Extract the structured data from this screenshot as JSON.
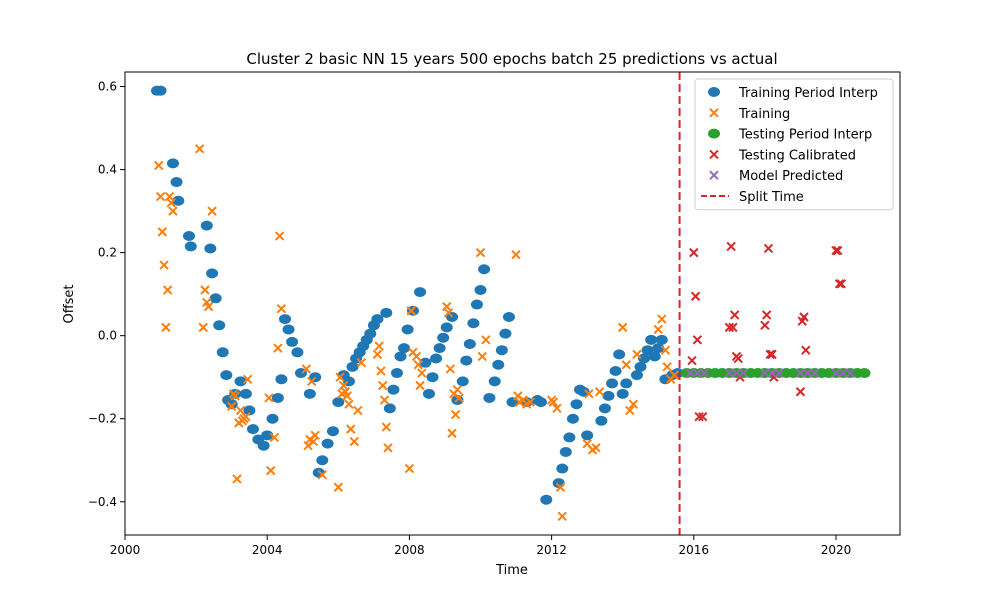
{
  "chart_data": {
    "type": "scatter",
    "title": "Cluster 2 basic NN 15 years 500 epochs batch 25 predictions vs actual",
    "xlabel": "Time",
    "ylabel": "Offset",
    "xlim": [
      2000.0,
      2021.8
    ],
    "ylim": [
      -0.48,
      0.635
    ],
    "x_ticks": [
      2000,
      2004,
      2008,
      2012,
      2016,
      2020
    ],
    "y_ticks": [
      -0.4,
      -0.2,
      0.0,
      0.2,
      0.4,
      0.6
    ],
    "y_tick_labels": [
      "−0.4",
      "−0.2",
      "0.0",
      "0.2",
      "0.4",
      "0.6"
    ],
    "grid": false,
    "legend_position": "top-right",
    "split_time": 2015.6,
    "series": [
      {
        "name": "Training Period Interp",
        "marker": "circle",
        "color": "#1f77b4",
        "x": [
          2000.9,
          2001.0,
          2001.35,
          2001.45,
          2001.5,
          2001.8,
          2001.85,
          2002.3,
          2002.4,
          2002.45,
          2002.55,
          2002.65,
          2002.75,
          2002.85,
          2002.9,
          2003.0,
          2003.1,
          2003.25,
          2003.4,
          2003.5,
          2003.6,
          2003.75,
          2003.9,
          2004.0,
          2004.15,
          2004.3,
          2004.4,
          2004.5,
          2004.6,
          2004.7,
          2004.85,
          2004.95,
          2005.2,
          2005.35,
          2005.45,
          2005.55,
          2005.7,
          2005.85,
          2006.0,
          2006.15,
          2006.3,
          2006.4,
          2006.5,
          2006.6,
          2006.7,
          2006.8,
          2006.9,
          2007.0,
          2007.1,
          2007.35,
          2007.45,
          2007.55,
          2007.65,
          2007.75,
          2007.85,
          2007.95,
          2008.1,
          2008.3,
          2008.45,
          2008.55,
          2008.65,
          2008.75,
          2008.85,
          2008.95,
          2009.05,
          2009.2,
          2009.35,
          2009.5,
          2009.6,
          2009.7,
          2009.8,
          2009.9,
          2010.0,
          2010.1,
          2010.25,
          2010.4,
          2010.5,
          2010.6,
          2010.7,
          2010.8,
          2010.9,
          2011.3,
          2011.6,
          2011.7,
          2011.85,
          2012.2,
          2012.3,
          2012.4,
          2012.5,
          2012.6,
          2012.7,
          2012.8,
          2012.9,
          2013.0,
          2013.4,
          2013.5,
          2013.6,
          2013.7,
          2013.8,
          2013.9,
          2014.0,
          2014.1,
          2014.4,
          2014.5,
          2014.6,
          2014.7,
          2014.8,
          2014.9,
          2015.0,
          2015.1,
          2015.2,
          2015.4,
          2015.55
        ],
        "y": [
          0.59,
          0.59,
          0.415,
          0.37,
          0.325,
          0.24,
          0.215,
          0.265,
          0.21,
          0.15,
          0.09,
          0.025,
          -0.04,
          -0.095,
          -0.155,
          -0.165,
          -0.14,
          -0.11,
          -0.14,
          -0.18,
          -0.225,
          -0.25,
          -0.265,
          -0.24,
          -0.2,
          -0.15,
          -0.105,
          0.04,
          0.015,
          -0.015,
          -0.04,
          -0.09,
          -0.14,
          -0.1,
          -0.33,
          -0.3,
          -0.26,
          -0.23,
          -0.16,
          -0.095,
          -0.11,
          -0.075,
          -0.055,
          -0.04,
          -0.025,
          -0.01,
          0.005,
          0.025,
          0.04,
          0.055,
          -0.175,
          -0.13,
          -0.09,
          -0.05,
          -0.03,
          0.015,
          0.06,
          0.105,
          -0.065,
          -0.14,
          -0.1,
          -0.055,
          -0.03,
          -0.005,
          0.02,
          0.045,
          -0.155,
          -0.11,
          -0.06,
          -0.02,
          0.03,
          0.075,
          0.11,
          0.16,
          -0.15,
          -0.11,
          -0.07,
          -0.035,
          0.005,
          0.045,
          -0.16,
          -0.16,
          -0.155,
          -0.16,
          -0.395,
          -0.355,
          -0.32,
          -0.28,
          -0.245,
          -0.2,
          -0.165,
          -0.13,
          -0.135,
          -0.24,
          -0.205,
          -0.175,
          -0.145,
          -0.115,
          -0.085,
          -0.045,
          -0.14,
          -0.115,
          -0.095,
          -0.075,
          -0.055,
          -0.035,
          -0.01,
          -0.05,
          -0.03,
          -0.01,
          -0.105,
          -0.095,
          -0.09
        ]
      },
      {
        "name": "Training",
        "marker": "x",
        "color": "#ff7f0e",
        "x": [
          2000.95,
          2001.0,
          2001.05,
          2001.1,
          2001.15,
          2001.2,
          2001.25,
          2001.3,
          2001.35,
          2002.1,
          2002.2,
          2002.25,
          2002.3,
          2002.35,
          2002.45,
          2003.0,
          2003.05,
          2003.1,
          2003.15,
          2003.2,
          2003.25,
          2003.3,
          2003.35,
          2003.4,
          2003.45,
          2004.05,
          2004.1,
          2004.2,
          2004.3,
          2004.35,
          2004.4,
          2005.1,
          2005.15,
          2005.2,
          2005.25,
          2005.3,
          2005.35,
          2005.55,
          2006.0,
          2006.05,
          2006.1,
          2006.15,
          2006.2,
          2006.25,
          2006.3,
          2006.35,
          2006.45,
          2006.55,
          2006.65,
          2007.1,
          2007.15,
          2007.2,
          2007.25,
          2007.3,
          2007.35,
          2007.4,
          2008.0,
          2008.05,
          2008.1,
          2008.2,
          2008.25,
          2008.3,
          2008.35,
          2009.05,
          2009.1,
          2009.15,
          2009.2,
          2009.25,
          2009.3,
          2009.35,
          2009.4,
          2010.0,
          2010.05,
          2010.15,
          2011.0,
          2011.05,
          2011.1,
          2011.2,
          2011.3,
          2011.4,
          2012.0,
          2012.05,
          2012.15,
          2012.25,
          2012.3,
          2013.0,
          2013.05,
          2013.15,
          2013.25,
          2013.35,
          2014.0,
          2014.1,
          2014.2,
          2014.3,
          2014.4,
          2015.0,
          2015.1,
          2015.2,
          2015.25,
          2015.35,
          2015.45
        ],
        "y": [
          0.41,
          0.335,
          0.25,
          0.17,
          0.02,
          0.11,
          0.335,
          0.32,
          0.3,
          0.45,
          0.02,
          0.11,
          0.08,
          0.07,
          0.3,
          -0.17,
          -0.14,
          -0.145,
          -0.345,
          -0.21,
          -0.18,
          -0.205,
          -0.2,
          -0.195,
          -0.105,
          -0.15,
          -0.325,
          -0.245,
          -0.03,
          0.24,
          0.065,
          -0.08,
          -0.265,
          -0.25,
          -0.11,
          -0.255,
          -0.24,
          -0.335,
          -0.365,
          -0.1,
          -0.14,
          -0.12,
          -0.135,
          -0.145,
          -0.165,
          -0.225,
          -0.255,
          -0.18,
          -0.065,
          -0.045,
          -0.025,
          -0.085,
          -0.12,
          -0.155,
          -0.22,
          -0.27,
          -0.32,
          0.06,
          -0.04,
          -0.05,
          -0.07,
          -0.12,
          -0.09,
          0.07,
          0.055,
          -0.08,
          -0.235,
          -0.14,
          -0.19,
          -0.13,
          -0.15,
          0.2,
          -0.05,
          -0.01,
          0.195,
          -0.145,
          -0.16,
          -0.155,
          -0.165,
          -0.16,
          -0.155,
          -0.16,
          -0.175,
          -0.365,
          -0.435,
          -0.26,
          -0.14,
          -0.275,
          -0.27,
          -0.135,
          0.02,
          -0.07,
          -0.18,
          -0.165,
          -0.045,
          0.015,
          0.04,
          -0.035,
          -0.075,
          -0.105,
          -0.095
        ]
      },
      {
        "name": "Testing Period Interp",
        "marker": "circle",
        "color": "#2ca02c",
        "x": [
          2015.8,
          2016.0,
          2016.2,
          2016.4,
          2016.6,
          2016.8,
          2017.0,
          2017.2,
          2017.4,
          2017.6,
          2017.8,
          2018.0,
          2018.2,
          2018.4,
          2018.6,
          2018.8,
          2019.0,
          2019.2,
          2019.4,
          2019.6,
          2019.8,
          2020.0,
          2020.2,
          2020.4,
          2020.6,
          2020.8
        ],
        "y": [
          -0.09,
          -0.09,
          -0.09,
          -0.09,
          -0.09,
          -0.09,
          -0.09,
          -0.09,
          -0.09,
          -0.09,
          -0.09,
          -0.09,
          -0.09,
          -0.09,
          -0.09,
          -0.09,
          -0.09,
          -0.09,
          -0.09,
          -0.09,
          -0.09,
          -0.09,
          -0.09,
          -0.09,
          -0.09,
          -0.09
        ]
      },
      {
        "name": "Testing Calibrated",
        "marker": "x",
        "color": "#d62728",
        "x": [
          2015.95,
          2016.0,
          2016.05,
          2016.1,
          2016.15,
          2016.25,
          2016.3,
          2017.0,
          2017.05,
          2017.1,
          2017.15,
          2017.2,
          2017.25,
          2017.3,
          2018.0,
          2018.05,
          2018.1,
          2018.15,
          2018.2,
          2018.25,
          2019.0,
          2019.05,
          2019.1,
          2019.15,
          2019.2,
          2020.0,
          2020.05,
          2020.1,
          2020.15,
          2020.2
        ],
        "y": [
          -0.06,
          0.2,
          0.095,
          -0.01,
          -0.195,
          -0.195,
          -0.09,
          0.02,
          0.215,
          0.02,
          0.05,
          -0.05,
          -0.055,
          -0.1,
          0.025,
          0.05,
          0.21,
          -0.045,
          -0.045,
          -0.1,
          -0.135,
          0.035,
          0.045,
          -0.035,
          -0.09,
          0.205,
          0.205,
          0.125,
          0.125,
          -0.09
        ]
      },
      {
        "name": "Model Predicted",
        "marker": "x",
        "color": "#9467bd",
        "x": [
          2015.9,
          2016.1,
          2016.3,
          2017.0,
          2017.2,
          2017.4,
          2018.0,
          2018.2,
          2018.4,
          2019.0,
          2019.2,
          2019.4,
          2020.0,
          2020.2,
          2020.4
        ],
        "y": [
          -0.09,
          -0.09,
          -0.09,
          -0.09,
          -0.09,
          -0.09,
          -0.09,
          -0.09,
          -0.09,
          -0.09,
          -0.09,
          -0.09,
          -0.09,
          -0.09,
          -0.09
        ]
      }
    ],
    "split_line": {
      "name": "Split Time",
      "color": "#d62728",
      "style": "dashed"
    }
  }
}
